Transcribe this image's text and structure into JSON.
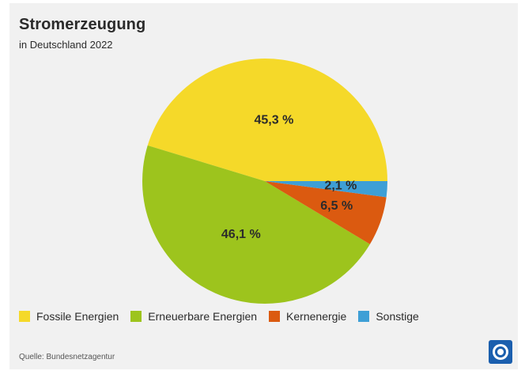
{
  "header": {
    "title": "Stromerzeugung",
    "subtitle": "in Deutschland 2022"
  },
  "chart_data": {
    "type": "pie",
    "title": "Stromerzeugung",
    "subtitle": "in Deutschland 2022",
    "start_angle_deg": 0,
    "direction": "counterclockwise",
    "legend_position": "bottom-left",
    "slices": [
      {
        "label": "Fossile Energien",
        "value": 45.3,
        "display": "45,3 %",
        "color": "#f5d929"
      },
      {
        "label": "Erneuerbare Energien",
        "value": 46.1,
        "display": "46,1 %",
        "color": "#9dc41d"
      },
      {
        "label": "Kernenergie",
        "value": 6.5,
        "display": "6,5 %",
        "color": "#db5a10"
      },
      {
        "label": "Sonstige",
        "value": 2.1,
        "display": "2,1 %",
        "color": "#3e9fd6"
      }
    ]
  },
  "footer": {
    "source": "Quelle: Bundesnetzagentur"
  },
  "logo_icon": "tagesschau-logo-icon"
}
